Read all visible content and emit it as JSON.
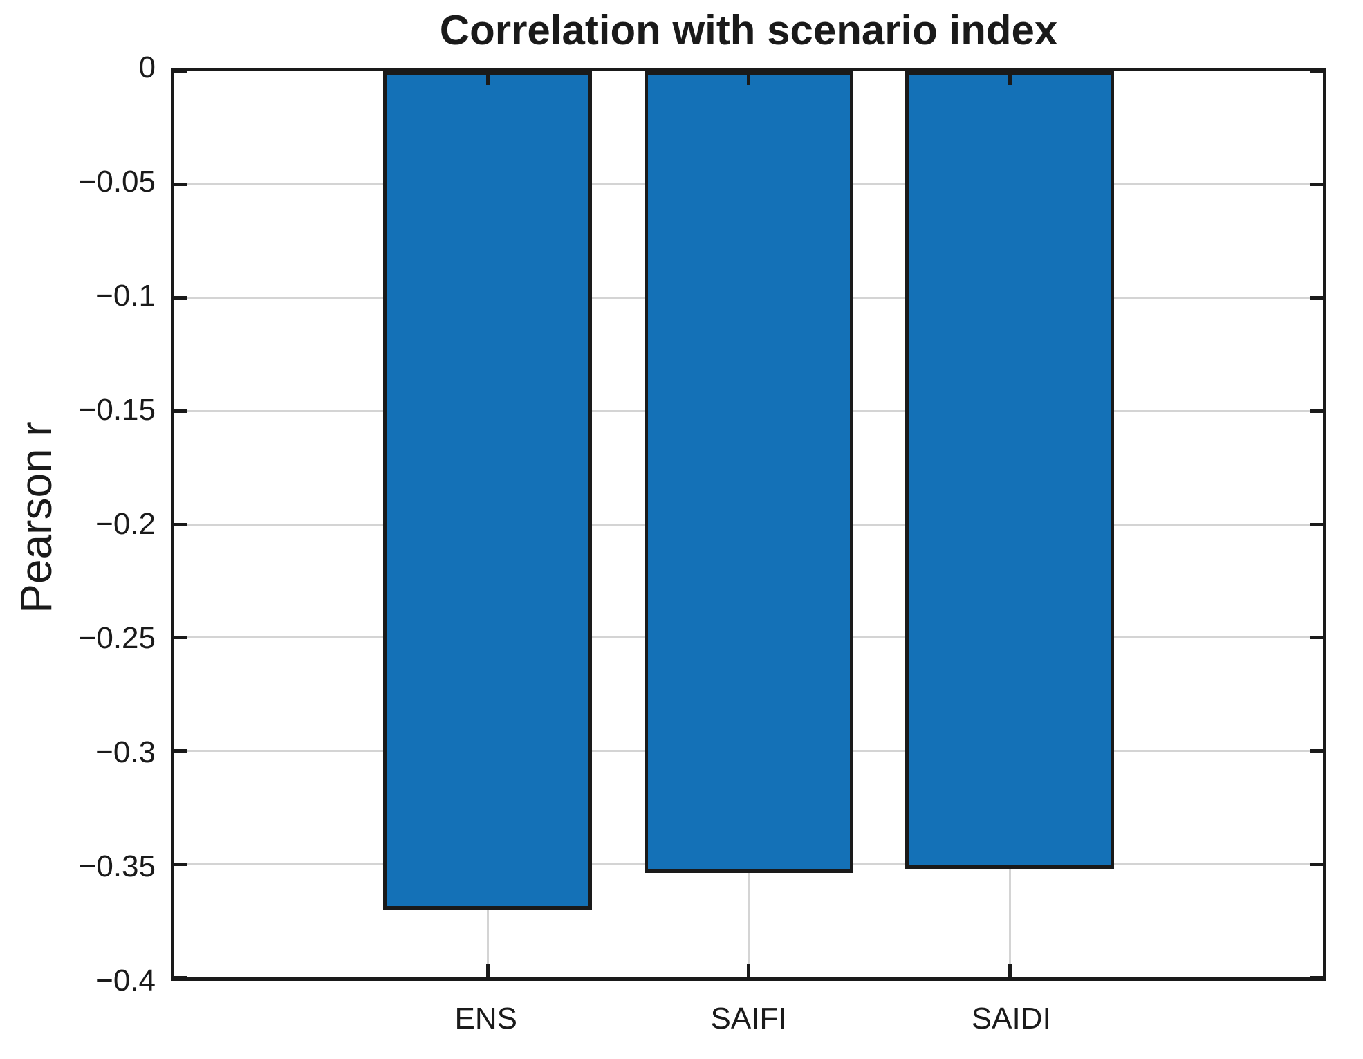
{
  "title": "Correlation with scenario index",
  "ylabel": "Pearson r",
  "chart_data": {
    "type": "bar",
    "title": "Correlation with scenario index",
    "xlabel": "",
    "ylabel": "Pearson r",
    "categories": [
      "ENS",
      "SAIFI",
      "SAIDI"
    ],
    "values": [
      -0.37,
      -0.354,
      -0.352
    ],
    "x": [
      1,
      2,
      3
    ],
    "xlim": [
      -0.2,
      4.2
    ],
    "ylim": [
      -0.4,
      0
    ],
    "yticks": [
      0,
      -0.05,
      -0.1,
      -0.15,
      -0.2,
      -0.25,
      -0.3,
      -0.35,
      -0.4
    ],
    "ytick_labels": [
      "0",
      "−0.05",
      "−0.1",
      "−0.15",
      "−0.2",
      "−0.25",
      "−0.3",
      "−0.35",
      "−0.4"
    ],
    "bar_width": 0.8,
    "grid": true,
    "legend": false,
    "colors": {
      "bar_fill": "#1471b7",
      "bar_edge": "#1a1a1a",
      "axis": "#1a1a1a",
      "grid": "#d4d4d4",
      "text": "#1a1a1a"
    }
  }
}
